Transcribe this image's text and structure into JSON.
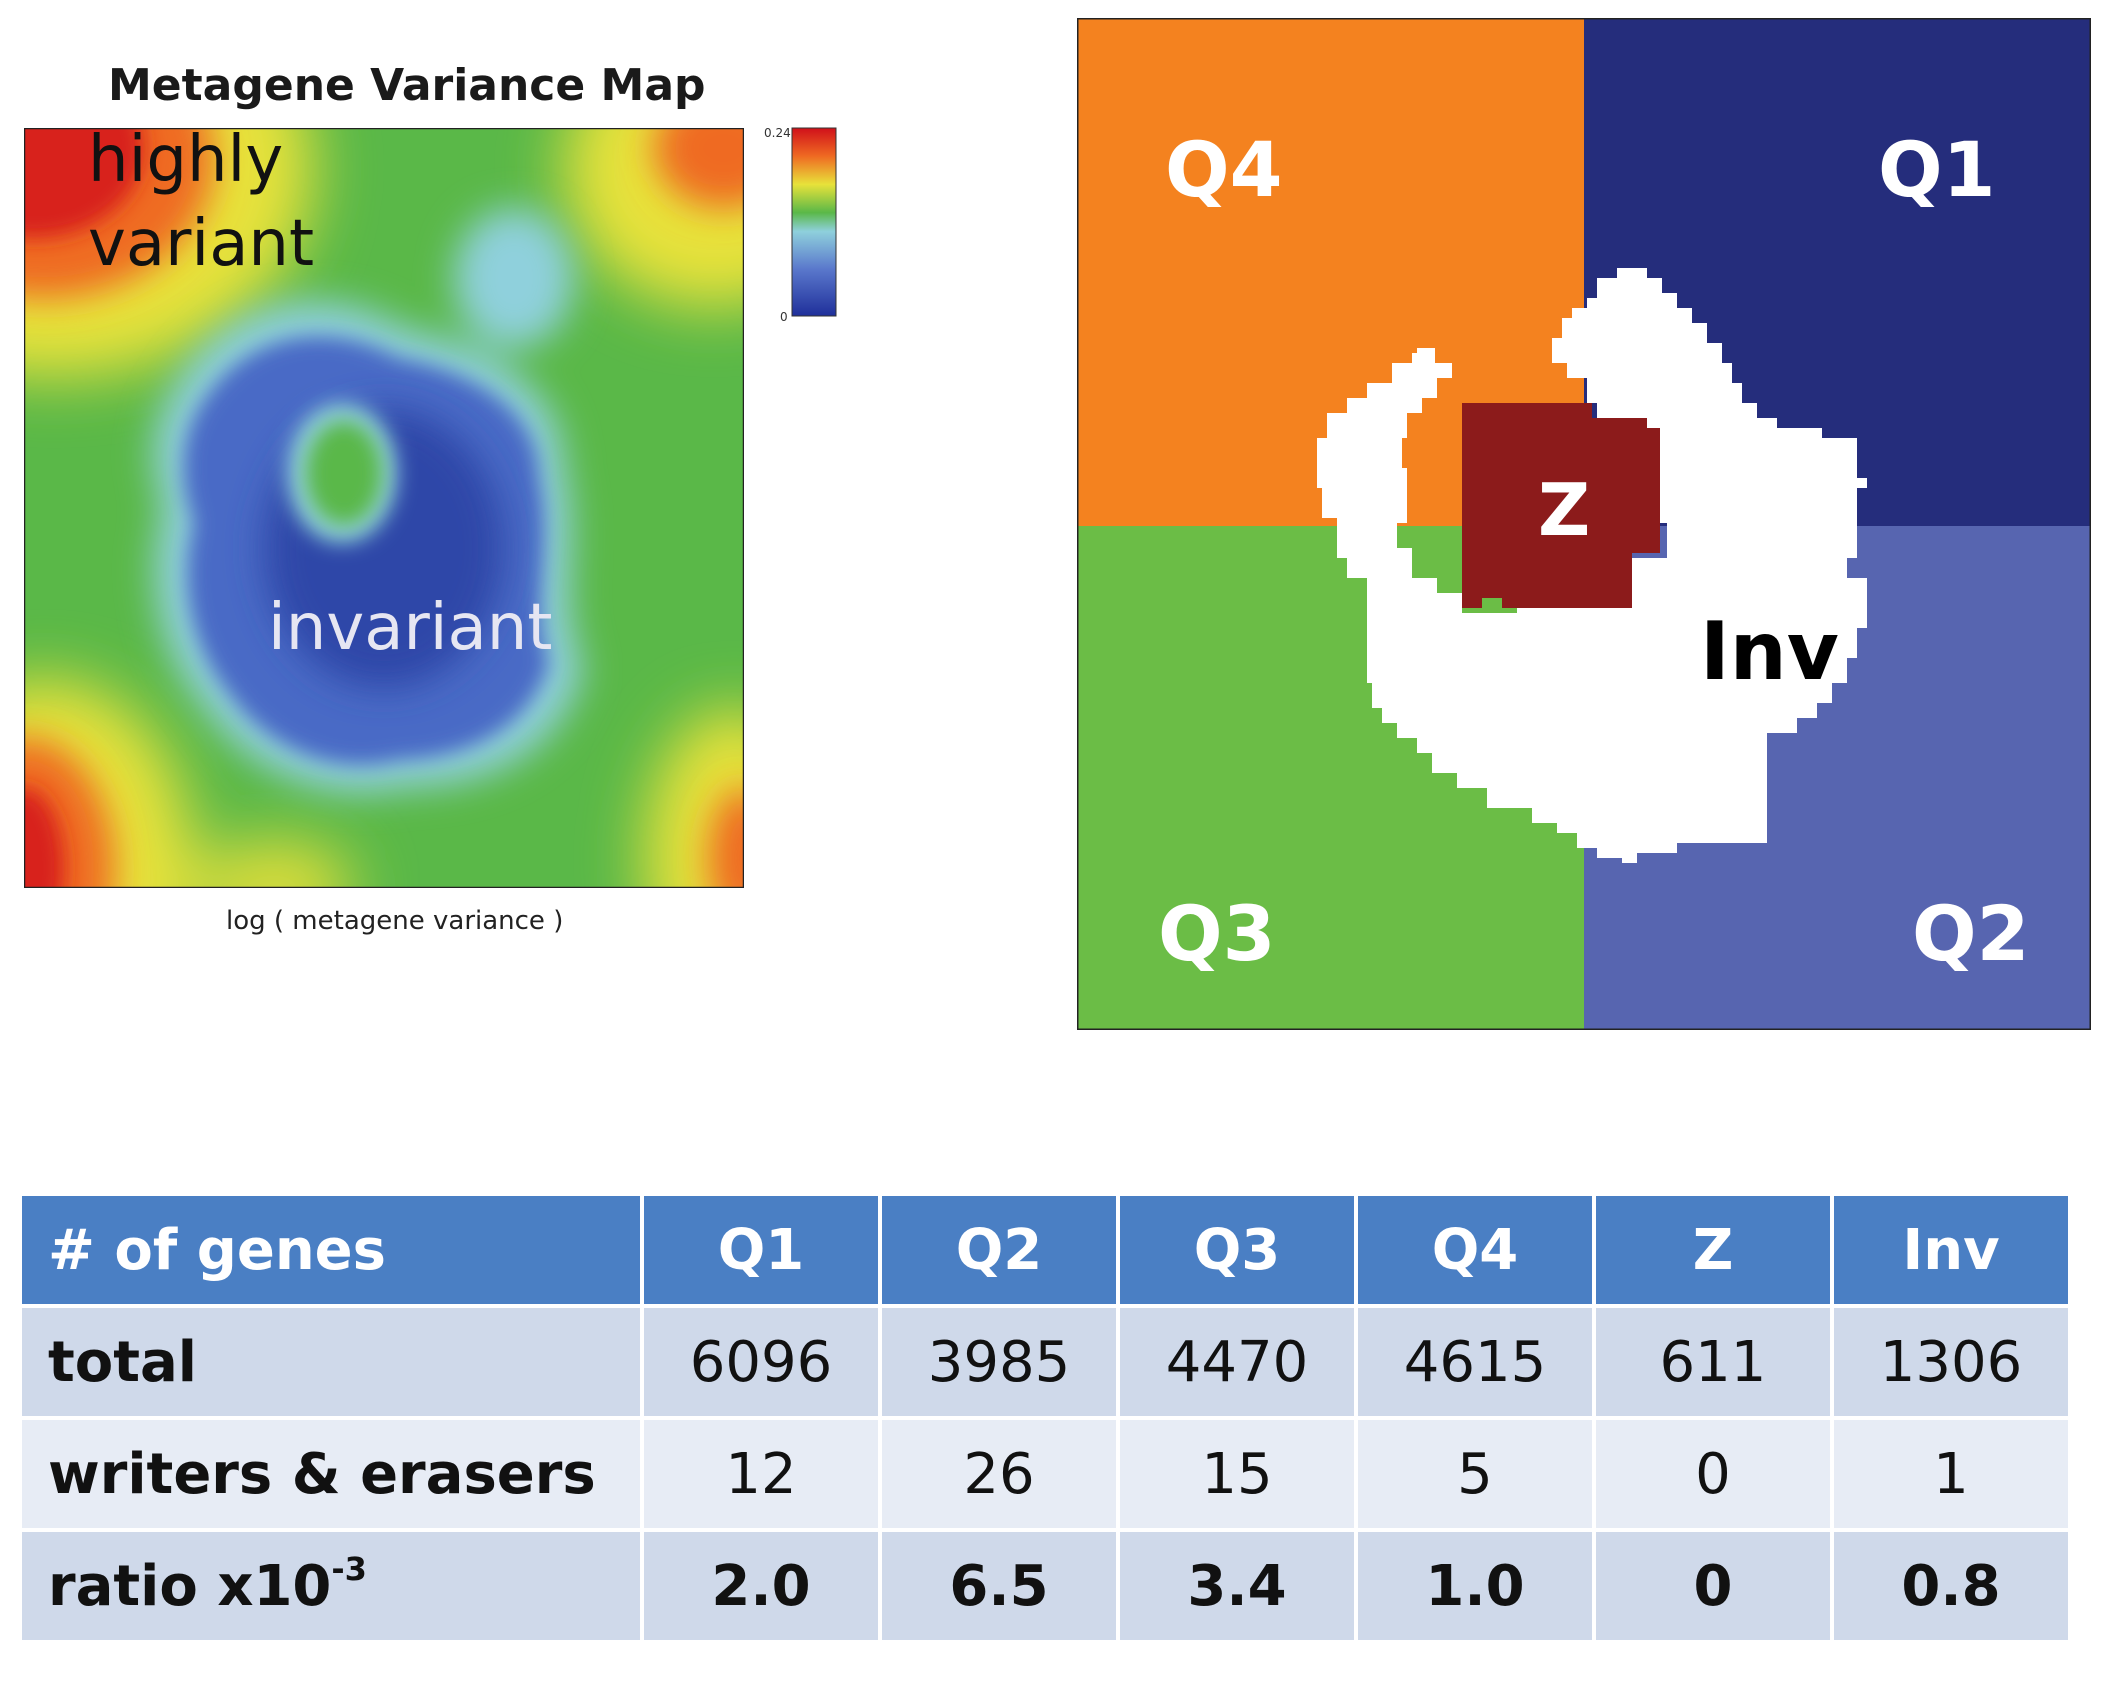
{
  "variance_map": {
    "title": "Metagene Variance Map",
    "colorbar_max": "0.24",
    "colorbar_min": "0",
    "xaxis_label": "log ( metagene variance )",
    "label_highly": "highly",
    "label_variant": "variant",
    "label_invariant": "invariant"
  },
  "quadrant_map": {
    "q1": "Q1",
    "q2": "Q2",
    "q3": "Q3",
    "q4": "Q4",
    "z": "Z",
    "inv": "Inv",
    "colors": {
      "q1": "#252d7c",
      "q2": "#5765b0",
      "q3": "#6bbd46",
      "q4": "#f4821f",
      "z": "#8c1b1b",
      "inv": "#ffffff"
    }
  },
  "table": {
    "header": [
      "# of genes",
      "Q1",
      "Q2",
      "Q3",
      "Q4",
      "Z",
      "Inv"
    ],
    "rows": [
      {
        "label": "total",
        "values": [
          "6096",
          "3985",
          "4470",
          "4615",
          "611",
          "1306"
        ]
      },
      {
        "label": "writers & erasers",
        "values": [
          "12",
          "26",
          "15",
          "5",
          "0",
          "1"
        ]
      },
      {
        "label": "ratio x10",
        "label_sup": "-3",
        "values": [
          "2.0",
          "6.5",
          "3.4",
          "1.0",
          "0",
          "0.8"
        ]
      }
    ],
    "colors": {
      "header": "#4a7fc4",
      "row_dark": "#cfd9ea",
      "row_light": "#e7ecf5"
    }
  }
}
